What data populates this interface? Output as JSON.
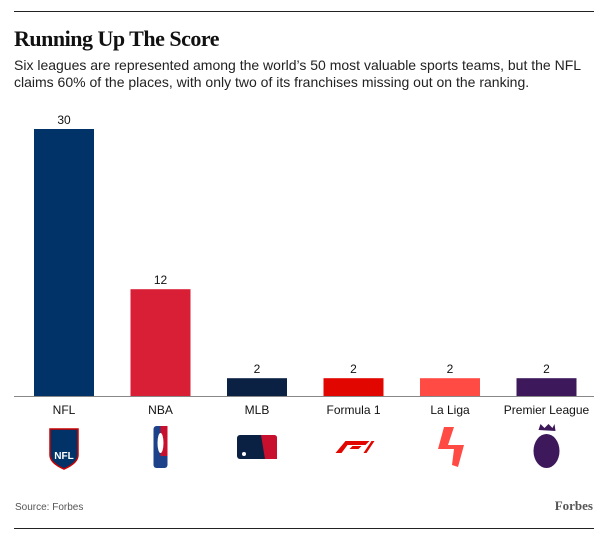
{
  "title": "Running Up The Score",
  "subtitle": "Six leagues are represented among the world’s 50 most valuable sports teams, but the NFL claims 60% of the places, with only two of its franchises missing out on the ranking.",
  "source": "Source: Forbes",
  "brand": "Forbes",
  "chart_data": {
    "type": "bar",
    "categories": [
      "NFL",
      "NBA",
      "MLB",
      "Formula 1",
      "La Liga",
      "Premier League"
    ],
    "values": [
      30,
      12,
      2,
      2,
      2,
      2
    ],
    "colors": [
      "#013369",
      "#d91f36",
      "#0b2143",
      "#e10600",
      "#ff4b44",
      "#3d195b"
    ],
    "icons": [
      "nfl-logo-icon",
      "nba-logo-icon",
      "mlb-logo-icon",
      "formula1-logo-icon",
      "laliga-logo-icon",
      "premier-league-logo-icon"
    ],
    "ylim": [
      0,
      30
    ],
    "grid": false,
    "data_labels": true
  }
}
